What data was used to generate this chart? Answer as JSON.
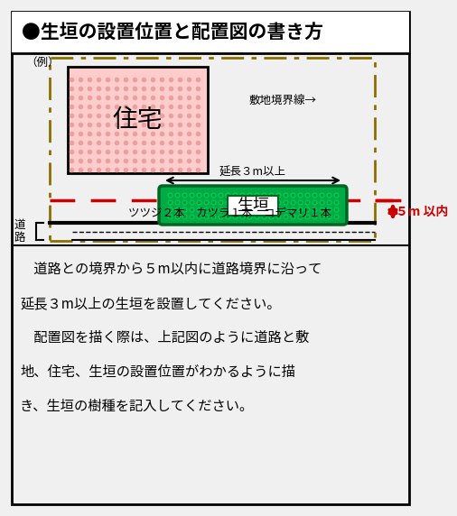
{
  "title": "●生垣の設置位置と配置図の書き方",
  "bg_color": "#f0f0f0",
  "border_color": "#000000",
  "example_label": "（例）",
  "house_label": "住宅",
  "hedge_label": "生垣",
  "road_label": "道\n路",
  "boundary_label": "敷地境界線→",
  "extension_label": "延長３m以上",
  "distance_label": "５m 以内",
  "plants_label": "ツツジ２本　カツラ１本　コデマリ１本",
  "desc_line1": "　道路との境界から５m以内に道路境界に沿って",
  "desc_line2": "延長３m以上の生垣を設置してください。",
  "desc_line3": "　配置図を描く際は、上記図のように道路と敷",
  "desc_line4": "地、住宅、生垣の設置位置がわかるように描",
  "desc_line5": "き、生垣の樹種を記入してください。",
  "dashed_border_color": "#8B7000",
  "red_dash_color": "#CC0000",
  "red_arrow_color": "#CC0000",
  "house_fill": "#ffcccc",
  "hedge_fill": "#00aa44",
  "hedge_edge": "#006622",
  "white": "#ffffff",
  "title_bg": "#ffffff",
  "road_bg": "#e8e8e8"
}
